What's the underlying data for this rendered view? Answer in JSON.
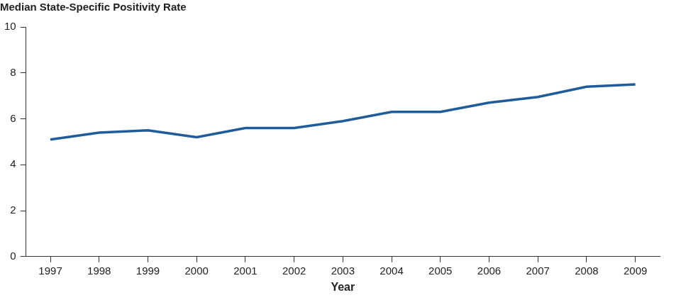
{
  "chart_data": {
    "type": "line",
    "y_label": "Median State-Specific Positivity Rate",
    "x_label": "Year",
    "categories": [
      "1997",
      "1998",
      "1999",
      "2000",
      "2001",
      "2002",
      "2003",
      "2004",
      "2005",
      "2006",
      "2007",
      "2008",
      "2009"
    ],
    "values": [
      5.1,
      5.4,
      5.5,
      5.2,
      5.6,
      5.6,
      5.9,
      6.3,
      6.3,
      6.7,
      6.95,
      7.4,
      7.5
    ],
    "color": "#1f5c99",
    "ylim": [
      0,
      10
    ],
    "yticks": [
      0,
      2,
      4,
      6,
      8,
      10
    ],
    "grid": false
  }
}
